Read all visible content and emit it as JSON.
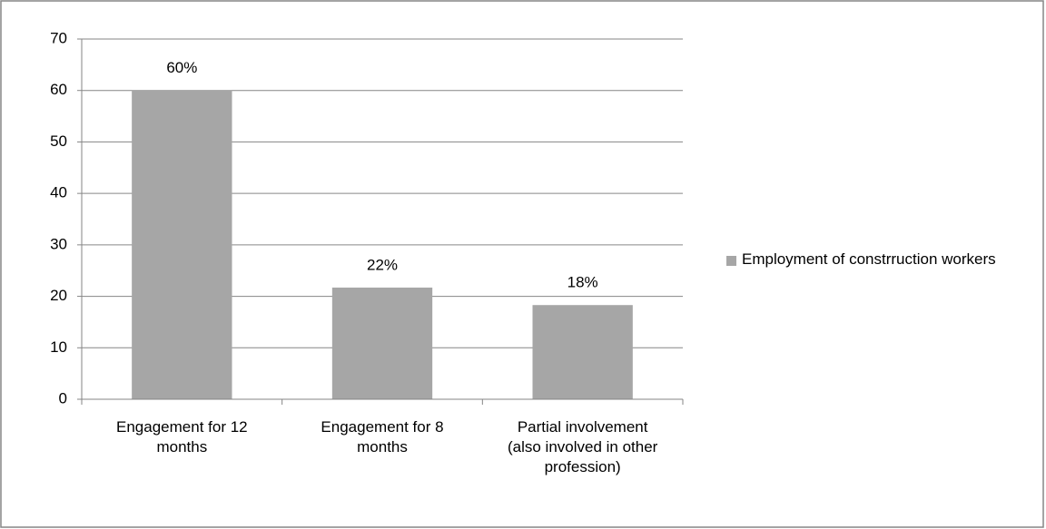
{
  "chart_data": {
    "type": "bar",
    "categories": [
      "Engagement for 12 months",
      "Engagement for 8 months",
      "Partial involvement (also involved in other profession)"
    ],
    "series": [
      {
        "name": "Employment of constrruction workers",
        "color": "#a6a6a6",
        "values": [
          60,
          21.7,
          18.3
        ],
        "value_labels": [
          "60%",
          "22%",
          "18%"
        ]
      }
    ],
    "ylim": [
      0,
      70
    ],
    "yticks": [
      0,
      10,
      20,
      30,
      40,
      50,
      60,
      70
    ],
    "grid": true,
    "legend": "right"
  }
}
